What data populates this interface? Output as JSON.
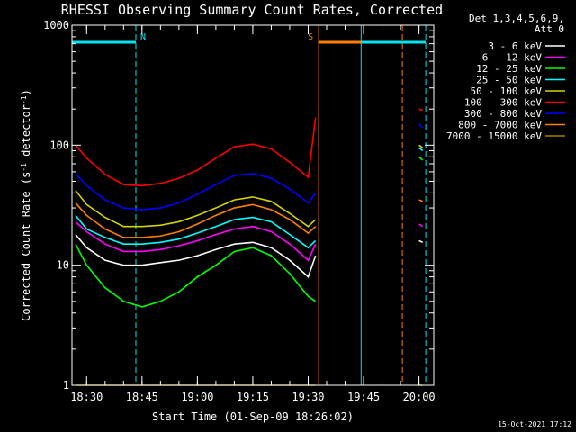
{
  "chart_data": {
    "type": "line",
    "title": "RHESSI Observing Summary Count Rates, Corrected",
    "xlabel": "Start Time (01-Sep-09 18:26:02)",
    "ylabel": "Corrected Count Rate (s",
    "ylabel_sup1": "-1",
    "ylabel_mid": " detector",
    "ylabel_sup2": "-1",
    "ylabel_end": ")",
    "x_range": [
      "18:26:02",
      "20:04:00"
    ],
    "x_ticks": [
      "18:30",
      "18:45",
      "19:00",
      "19:15",
      "19:30",
      "19:45",
      "20:00"
    ],
    "y_scale": "log",
    "ylim": [
      1,
      1000
    ],
    "y_ticks": [
      "1",
      "10",
      "100",
      "1000"
    ],
    "legend_header": [
      "Det 1,3,4,5,6,9,",
      "Att 0"
    ],
    "legend_position": "right",
    "timestamp": "15-Oct-2021 17:12",
    "annotations": [
      {
        "label": "N",
        "color": "#00e5ee",
        "start": "18:26:02",
        "end": "18:43:20"
      },
      {
        "label": "S",
        "color": "#ff8000",
        "start": "19:32:50",
        "end": "19:55:30"
      },
      {
        "label": "",
        "color": "#00e5ee",
        "start": "19:44:20",
        "end": "20:01:50"
      }
    ],
    "vertical_lines": [
      {
        "time": "18:26:02",
        "color": "#00e5ee",
        "style": "solid"
      },
      {
        "time": "18:43:20",
        "color": "#00e5ee",
        "style": "dashed"
      },
      {
        "time": "19:32:50",
        "color": "#ff8000",
        "style": "solid"
      },
      {
        "time": "19:44:20",
        "color": "#00e5ee",
        "style": "solid"
      },
      {
        "time": "19:55:30",
        "color": "#ff8000",
        "style": "dashed"
      },
      {
        "time": "20:01:50",
        "color": "#00e5ee",
        "style": "dashed"
      }
    ],
    "x": [
      "18:27",
      "18:30",
      "18:35",
      "18:40",
      "18:45",
      "18:50",
      "18:55",
      "19:00",
      "19:05",
      "19:10",
      "19:15",
      "19:20",
      "19:25",
      "19:30",
      "19:32",
      "20:00",
      "20:01"
    ],
    "series": [
      {
        "name": "3 - 6 keV",
        "color": "#ffffff",
        "values": [
          18,
          14,
          11,
          10,
          10,
          10.5,
          11,
          12,
          13.5,
          15,
          15.5,
          14,
          11,
          8,
          12,
          16,
          15.5
        ]
      },
      {
        "name": "6 - 12 keV",
        "color": "#ff00ff",
        "values": [
          23,
          19,
          15,
          13,
          13,
          13.5,
          14.5,
          16,
          18,
          20,
          21,
          19,
          15,
          11,
          15,
          22,
          21
        ]
      },
      {
        "name": "12 - 25 keV",
        "color": "#00ff00",
        "values": [
          15,
          10,
          6.5,
          5,
          4.5,
          5,
          6,
          8,
          10,
          13,
          14,
          12,
          8.5,
          5.5,
          5,
          80,
          75
        ]
      },
      {
        "name": "25 - 50 keV",
        "color": "#00ffff",
        "values": [
          26,
          20,
          17,
          15,
          15,
          15.5,
          16.5,
          18.5,
          21,
          24,
          25,
          23,
          18,
          14,
          16,
          95,
          90
        ]
      },
      {
        "name": "50 - 100 keV",
        "color": "#d4d400",
        "values": [
          42,
          32,
          25,
          21,
          21,
          21.5,
          23,
          26,
          30,
          35,
          37,
          34,
          27,
          21,
          24,
          100,
          95
        ]
      },
      {
        "name": "100 - 300 keV",
        "color": "#ff0000",
        "values": [
          100,
          78,
          57,
          47,
          46,
          48,
          53,
          62,
          78,
          97,
          102,
          93,
          72,
          54,
          170,
          200,
          195
        ]
      },
      {
        "name": "300 - 800 keV",
        "color": "#0000ff",
        "values": [
          58,
          46,
          35,
          30,
          29,
          30,
          33,
          39,
          47,
          56,
          58,
          53,
          43,
          33,
          40,
          150,
          140
        ]
      },
      {
        "name": "800 - 7000 keV",
        "color": "#ff8000",
        "values": [
          33,
          26,
          20,
          17,
          17,
          17.5,
          19,
          22,
          26,
          30,
          32,
          29,
          24,
          18.5,
          21,
          35,
          34
        ]
      },
      {
        "name": "7000 - 15000 keV",
        "color": "#a08000",
        "values": [
          1,
          1,
          1,
          1,
          1,
          1,
          1,
          1,
          1,
          1,
          1,
          1,
          1,
          1,
          1,
          1,
          1
        ]
      }
    ]
  }
}
